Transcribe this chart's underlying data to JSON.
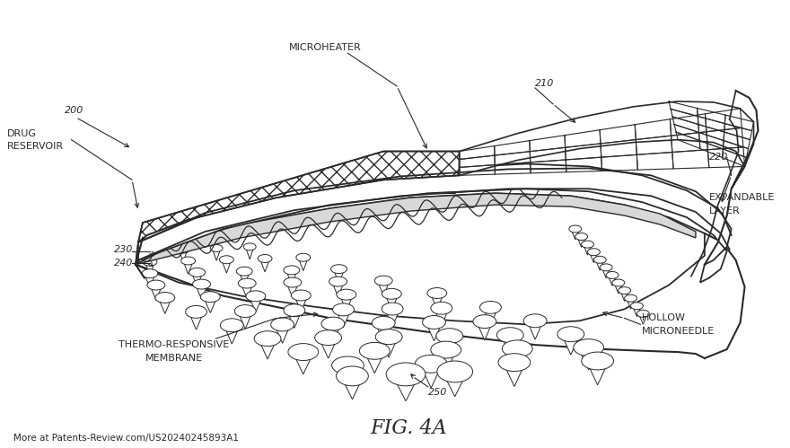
{
  "background_color": "#ffffff",
  "line_color": "#2a2a2a",
  "labels": {
    "microheater": "MICROHEATER",
    "drug_reservoir_1": "DRUG",
    "drug_reservoir_2": "RESERVOIR",
    "expandable_1": "EXPANDABLE",
    "expandable_2": "LAYER",
    "thermo_1": "THERMO-RESPONSIVE",
    "thermo_2": "MEMBRANE",
    "hollow_1": "HOLLOW",
    "hollow_2": "MICRONEEDLE"
  },
  "ref_numbers": [
    "200",
    "210",
    "220",
    "230",
    "240",
    "250"
  ],
  "footer_text": "More at Patents-Review.com/US20240245893A1",
  "fig_label": "FIG. 4A",
  "font_size_label": 8,
  "font_size_ref": 8,
  "font_size_footer": 7.5,
  "font_size_fig": 16
}
